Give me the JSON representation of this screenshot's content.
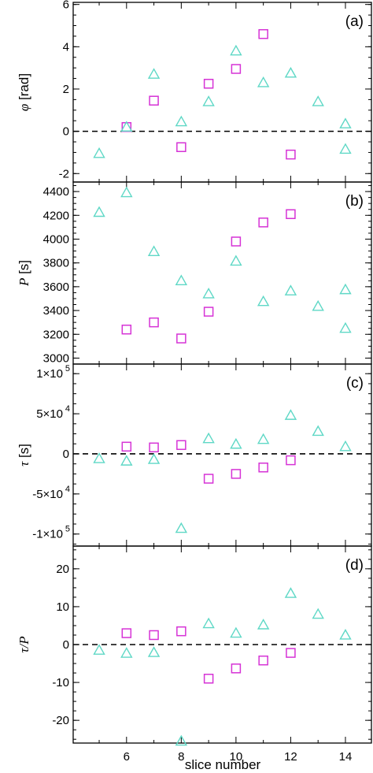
{
  "chart_data": [
    {
      "type": "scatter",
      "panel_tag": "(a)",
      "ylabel_symbol": "φ",
      "ylabel_unit": " [rad]",
      "ylim": [
        -2.4,
        6.1
      ],
      "yticks": [
        6,
        4,
        2,
        0,
        -2
      ],
      "ytick_labels": [
        "6",
        "4",
        "2",
        "0",
        "-2"
      ],
      "zero_line": true,
      "series": [
        {
          "marker": "square",
          "color": "#d633d6",
          "x": [
            6,
            7,
            8,
            9,
            10,
            11,
            12
          ],
          "y": [
            0.2,
            1.45,
            -0.75,
            2.25,
            2.95,
            4.6,
            -1.1
          ]
        },
        {
          "marker": "triangle",
          "color": "#5fd8c6",
          "x": [
            5,
            6,
            7,
            8,
            9,
            10,
            11,
            12,
            13,
            14,
            14
          ],
          "y": [
            -1.05,
            0.2,
            2.7,
            0.45,
            1.4,
            3.8,
            2.3,
            2.75,
            1.4,
            0.35,
            -0.85
          ]
        }
      ]
    },
    {
      "type": "scatter",
      "panel_tag": "(b)",
      "ylabel_symbol": "P",
      "ylabel_unit": " [s]",
      "ylim": [
        2950,
        4480
      ],
      "yticks": [
        4400,
        4200,
        4000,
        3800,
        3600,
        3400,
        3200,
        3000
      ],
      "ytick_labels": [
        "4400",
        "4200",
        "4000",
        "3800",
        "3600",
        "3400",
        "3200",
        "3000"
      ],
      "zero_line": false,
      "series": [
        {
          "marker": "square",
          "color": "#d633d6",
          "x": [
            6,
            7,
            8,
            9,
            10,
            11,
            12
          ],
          "y": [
            3240,
            3300,
            3165,
            3390,
            3980,
            4140,
            4210
          ]
        },
        {
          "marker": "triangle",
          "color": "#5fd8c6",
          "x": [
            5,
            6,
            7,
            8,
            9,
            10,
            11,
            12,
            13,
            14,
            14
          ],
          "y": [
            4225,
            4390,
            3895,
            3650,
            3540,
            3815,
            3475,
            3565,
            3435,
            3575,
            3250
          ]
        }
      ]
    },
    {
      "type": "scatter",
      "panel_tag": "(c)",
      "ylabel_symbol": "τ",
      "ylabel_unit": " [s]",
      "ylim": [
        -115000,
        112000
      ],
      "yticks": [
        100000,
        50000,
        0,
        -50000,
        -100000
      ],
      "ytick_labels": [
        "1×10",
        "5×10",
        "0",
        "-5×10",
        "-1×10"
      ],
      "ytick_exps": [
        "5",
        "4",
        "",
        "4",
        "5"
      ],
      "zero_line": true,
      "series": [
        {
          "marker": "square",
          "color": "#d633d6",
          "x": [
            6,
            7,
            8,
            9,
            10,
            11,
            12
          ],
          "y": [
            9000,
            8000,
            11000,
            -31000,
            -25000,
            -17000,
            -8000
          ]
        },
        {
          "marker": "triangle",
          "color": "#5fd8c6",
          "x": [
            5,
            6,
            7,
            8,
            9,
            10,
            11,
            12,
            13,
            14
          ],
          "y": [
            -6000,
            -9000,
            -7000,
            -93000,
            19000,
            12000,
            18000,
            48000,
            28000,
            9000
          ]
        }
      ]
    },
    {
      "type": "scatter",
      "panel_tag": "(d)",
      "ylabel_symbol": "τ/P",
      "ylabel_unit": "",
      "ylim": [
        -26,
        26
      ],
      "yticks": [
        20,
        10,
        0,
        -10,
        -20
      ],
      "ytick_labels": [
        "20",
        "10",
        "0",
        "-10",
        "-20"
      ],
      "zero_line": true,
      "series": [
        {
          "marker": "square",
          "color": "#d633d6",
          "x": [
            6,
            7,
            8,
            9,
            10,
            11,
            12
          ],
          "y": [
            3.0,
            2.5,
            3.5,
            -9.0,
            -6.3,
            -4.2,
            -2.2
          ]
        },
        {
          "marker": "triangle",
          "color": "#5fd8c6",
          "x": [
            5,
            6,
            7,
            8,
            9,
            10,
            11,
            12,
            13,
            14
          ],
          "y": [
            -1.5,
            -2.3,
            -2.1,
            -25.5,
            5.5,
            3.0,
            5.2,
            13.5,
            8.0,
            2.5
          ]
        }
      ]
    }
  ],
  "xaxis": {
    "label": "slice number",
    "xlim": [
      4.05,
      14.95
    ],
    "ticks": [
      6,
      8,
      10,
      12,
      14
    ],
    "tick_labels": [
      "6",
      "8",
      "10",
      "12",
      "14"
    ]
  }
}
